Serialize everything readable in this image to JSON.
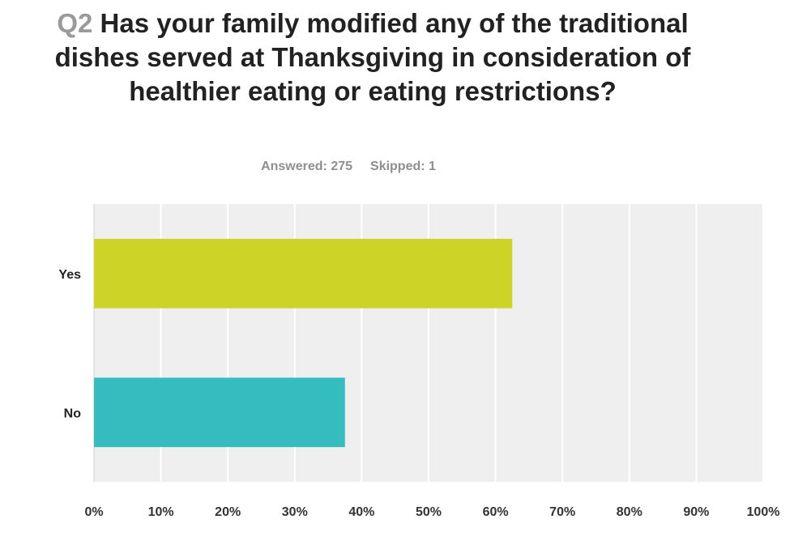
{
  "question": {
    "number": "Q2",
    "text": "Has your family modified any of the traditional dishes served at Thanksgiving in consideration of healthier eating or eating restrictions?"
  },
  "stats": {
    "answered": "Answered: 275",
    "skipped": "Skipped: 1"
  },
  "chart_data": {
    "type": "bar",
    "orientation": "horizontal",
    "categories": [
      "Yes",
      "No"
    ],
    "values": [
      62.5,
      37.5
    ],
    "colors": [
      "#cdd327",
      "#34bcbe"
    ],
    "xlim": [
      0,
      100
    ],
    "x_ticks": [
      "0%",
      "10%",
      "20%",
      "30%",
      "40%",
      "50%",
      "60%",
      "70%",
      "80%",
      "90%",
      "100%"
    ],
    "grid": true,
    "background": "#efefef"
  }
}
